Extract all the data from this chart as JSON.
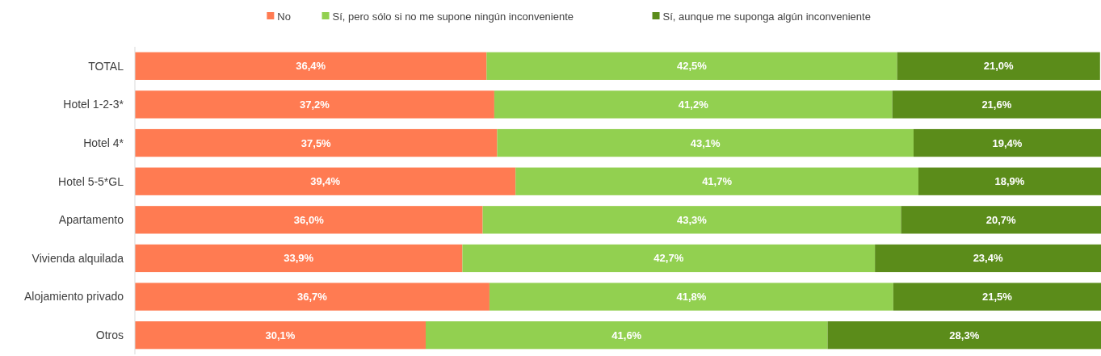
{
  "chart_data": {
    "type": "bar",
    "orientation": "horizontal",
    "stacked": true,
    "legend": "top",
    "categories": [
      "TOTAL",
      "Hotel 1-2-3*",
      "Hotel 4*",
      "Hotel 5-5*GL",
      "Apartamento",
      "Vivienda alquilada",
      "Alojamiento privado",
      "Otros"
    ],
    "series": [
      {
        "name": "No",
        "color": "#ff7b52",
        "values": [
          36.4,
          37.2,
          37.5,
          39.4,
          36.0,
          33.9,
          36.7,
          30.1
        ],
        "value_labels": [
          "36,4%",
          "37,2%",
          "37,5%",
          "39,4%",
          "36,0%",
          "33,9%",
          "36,7%",
          "30,1%"
        ]
      },
      {
        "name": "Sí, pero sólo si no me supone ningún inconveniente",
        "color": "#92d050",
        "values": [
          42.5,
          41.2,
          43.1,
          41.7,
          43.3,
          42.7,
          41.8,
          41.6
        ],
        "value_labels": [
          "42,5%",
          "41,2%",
          "43,1%",
          "41,7%",
          "43,3%",
          "42,7%",
          "41,8%",
          "41,6%"
        ]
      },
      {
        "name": "Sí, aunque me suponga algún inconveniente",
        "color": "#5b8c1a",
        "values": [
          21.0,
          21.6,
          19.4,
          18.9,
          20.7,
          23.4,
          21.5,
          28.3
        ],
        "value_labels": [
          "21,0%",
          "21,6%",
          "19,4%",
          "18,9%",
          "20,7%",
          "23,4%",
          "21,5%",
          "28,3%"
        ]
      }
    ]
  }
}
